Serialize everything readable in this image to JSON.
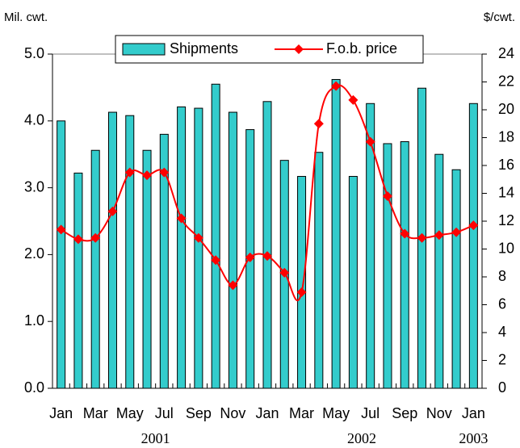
{
  "chart_data": {
    "type": "bar_line",
    "y_label": "Mil. cwt.",
    "y2_label": "$/cwt.",
    "categories": [
      "Jan",
      null,
      "Mar",
      null,
      "May",
      null,
      "Jul",
      null,
      "Sep",
      null,
      "Nov",
      null,
      "Jan",
      null,
      "Mar",
      null,
      "May",
      null,
      "Jul",
      null,
      "Sep",
      null,
      "Nov",
      null,
      "Jan"
    ],
    "x_groups": [
      "2001",
      "2002",
      "2003"
    ],
    "series": [
      {
        "name": "Shipments",
        "type": "bar",
        "color": "#33cccc",
        "values": [
          4.0,
          3.22,
          3.56,
          4.13,
          4.08,
          3.56,
          3.8,
          4.21,
          4.19,
          4.55,
          4.13,
          3.87,
          4.29,
          3.41,
          3.17,
          3.53,
          4.62,
          3.17,
          4.26,
          3.66,
          3.69,
          4.49,
          3.5,
          3.27,
          4.26
        ]
      },
      {
        "name": "F.o.b. price",
        "type": "line",
        "axis": "y2",
        "color": "#ff0000",
        "values": [
          11.4,
          10.7,
          10.8,
          12.7,
          15.5,
          15.3,
          15.5,
          12.2,
          10.8,
          9.2,
          7.4,
          9.4,
          9.5,
          8.3,
          6.9,
          19.0,
          21.7,
          20.7,
          17.7,
          13.8,
          11.1,
          10.8,
          11.0,
          11.2,
          11.7
        ]
      }
    ],
    "ylim": [
      0,
      5
    ],
    "yticks": [
      {
        "value": 0,
        "label": "0.0"
      },
      {
        "value": 1,
        "label": "1.0"
      },
      {
        "value": 2,
        "label": "2.0"
      },
      {
        "value": 3,
        "label": "3.0"
      },
      {
        "value": 4,
        "label": "4.0"
      },
      {
        "value": 5,
        "label": "5.0"
      }
    ],
    "y2lim": [
      0,
      24
    ],
    "y2ticks": [
      0,
      2,
      4,
      6,
      8,
      10,
      12,
      14,
      16,
      18,
      20,
      22,
      24
    ],
    "grid": false,
    "legend": "top"
  }
}
